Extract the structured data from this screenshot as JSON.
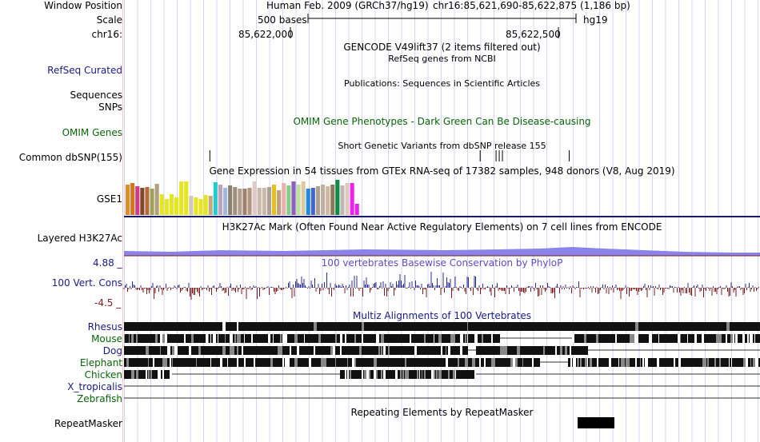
{
  "header": {
    "window_position_label": "Window Position",
    "scale_label": "Scale",
    "chrom_label": "chr16:",
    "assembly": "Human Feb. 2009 (GRCh37/hg19)",
    "position": "chr16:85,621,690-85,622,875 (1,186 bp)",
    "scale_text": "500 bases",
    "db": "hg19",
    "ruler_left": "85,622,000",
    "ruler_right": "85,622,500"
  },
  "tracks": {
    "gencode": {
      "title": "GENCODE V49lift37 (2 items filtered out)"
    },
    "refseq": {
      "label": "RefSeq Curated",
      "title": "RefSeq genes from NCBI"
    },
    "publications": {
      "title": "Publications: Sequences in Scientific Articles"
    },
    "sequences": {
      "label": "Sequences"
    },
    "snps": {
      "label": "SNPs"
    },
    "omim": {
      "label": "OMIM Genes",
      "title": "OMIM Gene Phenotypes - Dark Green Can Be Disease-causing"
    },
    "dbsnp": {
      "label": "Common dbSNP(155)",
      "title": "Short Genetic Variants from dbSNP release 155"
    },
    "gtex": {
      "label": "GSE1",
      "title": "Gene Expression in 54 tissues from GTEx RNA-seq of 17382 samples, 948 donors (V8, Aug 2019)"
    },
    "h3k27ac": {
      "label": "Layered H3K27Ac",
      "title": "H3K27Ac Mark (Often Found Near Active Regulatory Elements) on 7 cell lines from ENCODE"
    },
    "cons": {
      "label": "100 Vert. Cons",
      "max": "4.88 _",
      "min": "-4.5 _",
      "title": "100 vertebrates Basewise Conservation by PhyloP"
    },
    "multiz": {
      "title": "Multiz Alignments of 100 Vertebrates",
      "species": [
        "Rhesus",
        "Mouse",
        "Dog",
        "Elephant",
        "Chicken",
        "X_tropicalis",
        "Zebrafish"
      ]
    },
    "repeatmasker": {
      "label": "RepeatMasker",
      "title": "Repeating Elements by RepeatMasker"
    }
  },
  "gtex_values": [
    38,
    40,
    36,
    34,
    35,
    33,
    39,
    26,
    20,
    26,
    22,
    42,
    42,
    24,
    22,
    20,
    25,
    24,
    41,
    38,
    34,
    37,
    35,
    33,
    33,
    34,
    42,
    34,
    34,
    35,
    38,
    31,
    40,
    37,
    42,
    38,
    42,
    33,
    34,
    36,
    38,
    36,
    38,
    44,
    37,
    40,
    40,
    14
  ],
  "gtex_colors": [
    "#e08a2a",
    "#d2751e",
    "#d33a8a",
    "#7f4a2a",
    "#b66a3c",
    "#a0a05a",
    "#b0a080",
    "#e6e620",
    "#e6e620",
    "#e6e620",
    "#e6e620",
    "#e6e620",
    "#e6e620",
    "#d0c8c0",
    "#e6e620",
    "#e6e620",
    "#e6e620",
    "#c8a880",
    "#22cccc",
    "#c0a0c0",
    "#a0b8e0",
    "#8a8070",
    "#a09080",
    "#b0a090",
    "#a08070",
    "#b09880",
    "#e0c8c8",
    "#d0b8a8",
    "#c8b8a8",
    "#b0a090",
    "#e6c020",
    "#bfa080",
    "#eab0b0",
    "#88cc88",
    "#9060c0",
    "#c0e0a0",
    "#dcc8a0",
    "#2288dd",
    "#4466cc",
    "#b0a090",
    "#c0b0a0",
    "#d0b8a0",
    "#8a7a5a",
    "#118844",
    "#c0b8b0",
    "#e0c8b8",
    "#ee22ee",
    "#ee22ee"
  ],
  "dbsnp_ticks": [
    0.135,
    0.56,
    0.585,
    0.59,
    0.595,
    0.7
  ]
}
